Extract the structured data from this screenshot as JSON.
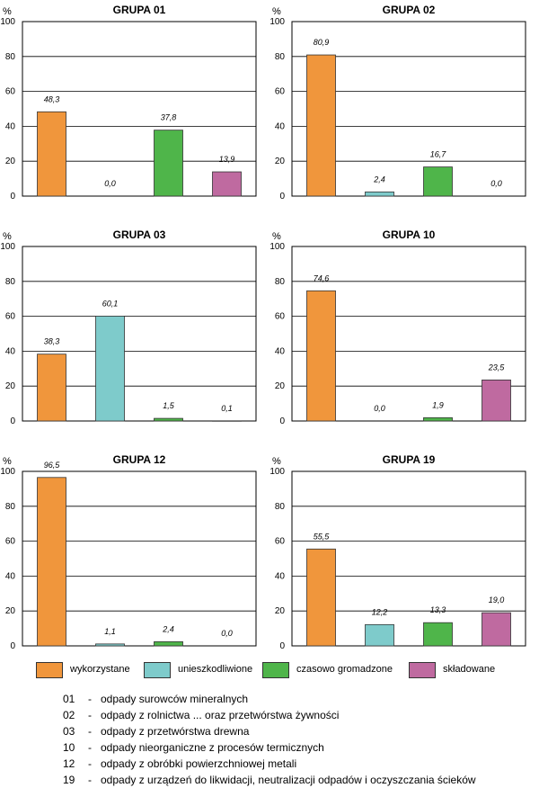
{
  "chart_data": [
    {
      "type": "bar",
      "title": "GRUPA 01",
      "ylabel": "%",
      "ylim": [
        0,
        100
      ],
      "yticks": [
        "0",
        "20",
        "40",
        "60",
        "80",
        "100"
      ],
      "values": [
        48.3,
        0.0,
        37.8,
        13.9
      ],
      "value_labels": [
        "48,3",
        "0,0",
        "37,8",
        "13,9"
      ]
    },
    {
      "type": "bar",
      "title": "GRUPA 02",
      "ylabel": "%",
      "ylim": [
        0,
        100
      ],
      "yticks": [
        "0",
        "20",
        "40",
        "60",
        "80",
        "100"
      ],
      "values": [
        80.9,
        2.4,
        16.7,
        0.0
      ],
      "value_labels": [
        "80,9",
        "2,4",
        "16,7",
        "0,0"
      ]
    },
    {
      "type": "bar",
      "title": "GRUPA 03",
      "ylabel": "%",
      "ylim": [
        0,
        100
      ],
      "yticks": [
        "0",
        "20",
        "40",
        "60",
        "80",
        "100"
      ],
      "values": [
        38.3,
        60.1,
        1.5,
        0.1
      ],
      "value_labels": [
        "38,3",
        "60,1",
        "1,5",
        "0,1"
      ]
    },
    {
      "type": "bar",
      "title": "GRUPA 10",
      "ylabel": "%",
      "ylim": [
        0,
        100
      ],
      "yticks": [
        "0",
        "20",
        "40",
        "60",
        "80",
        "100"
      ],
      "values": [
        74.6,
        0.0,
        1.9,
        23.5
      ],
      "value_labels": [
        "74,6",
        "0,0",
        "1,9",
        "23,5"
      ]
    },
    {
      "type": "bar",
      "title": "GRUPA 12",
      "ylabel": "%",
      "ylim": [
        0,
        100
      ],
      "yticks": [
        "0",
        "20",
        "40",
        "60",
        "80",
        "100"
      ],
      "values": [
        96.5,
        1.1,
        2.4,
        0.0
      ],
      "value_labels": [
        "96,5",
        "1,1",
        "2,4",
        "0,0"
      ]
    },
    {
      "type": "bar",
      "title": "GRUPA 19",
      "ylabel": "%",
      "ylim": [
        0,
        100
      ],
      "yticks": [
        "0",
        "20",
        "40",
        "60",
        "80",
        "100"
      ],
      "values": [
        55.5,
        12.2,
        13.3,
        19.0
      ],
      "value_labels": [
        "55,5",
        "12,2",
        "13,3",
        "19,0"
      ]
    }
  ],
  "series_colors": [
    "#f0963c",
    "#7ecbcb",
    "#4fb54a",
    "#bf6aa0"
  ],
  "legend": {
    "items": [
      {
        "label": "wykorzystane",
        "color": "#f0963c"
      },
      {
        "label": "unieszkodliwione",
        "color": "#7ecbcb"
      },
      {
        "label": "czasowo gromadzone",
        "color": "#4fb54a"
      },
      {
        "label": "składowane",
        "color": "#bf6aa0"
      }
    ]
  },
  "codes": [
    {
      "num": "01",
      "text": "odpady surowców mineralnych"
    },
    {
      "num": "02",
      "text": "odpady z rolnictwa ... oraz przetwórstwa żywności"
    },
    {
      "num": "03",
      "text": "odpady z przetwórstwa drewna"
    },
    {
      "num": "10",
      "text": "odpady nieorganiczne z procesów termicznych"
    },
    {
      "num": "12",
      "text": "odpady z obróbki powierzchniowej metali"
    },
    {
      "num": "19",
      "text": "odpady z urządzeń do likwidacji, neutralizacji odpadów i oczyszczania ścieków"
    }
  ]
}
